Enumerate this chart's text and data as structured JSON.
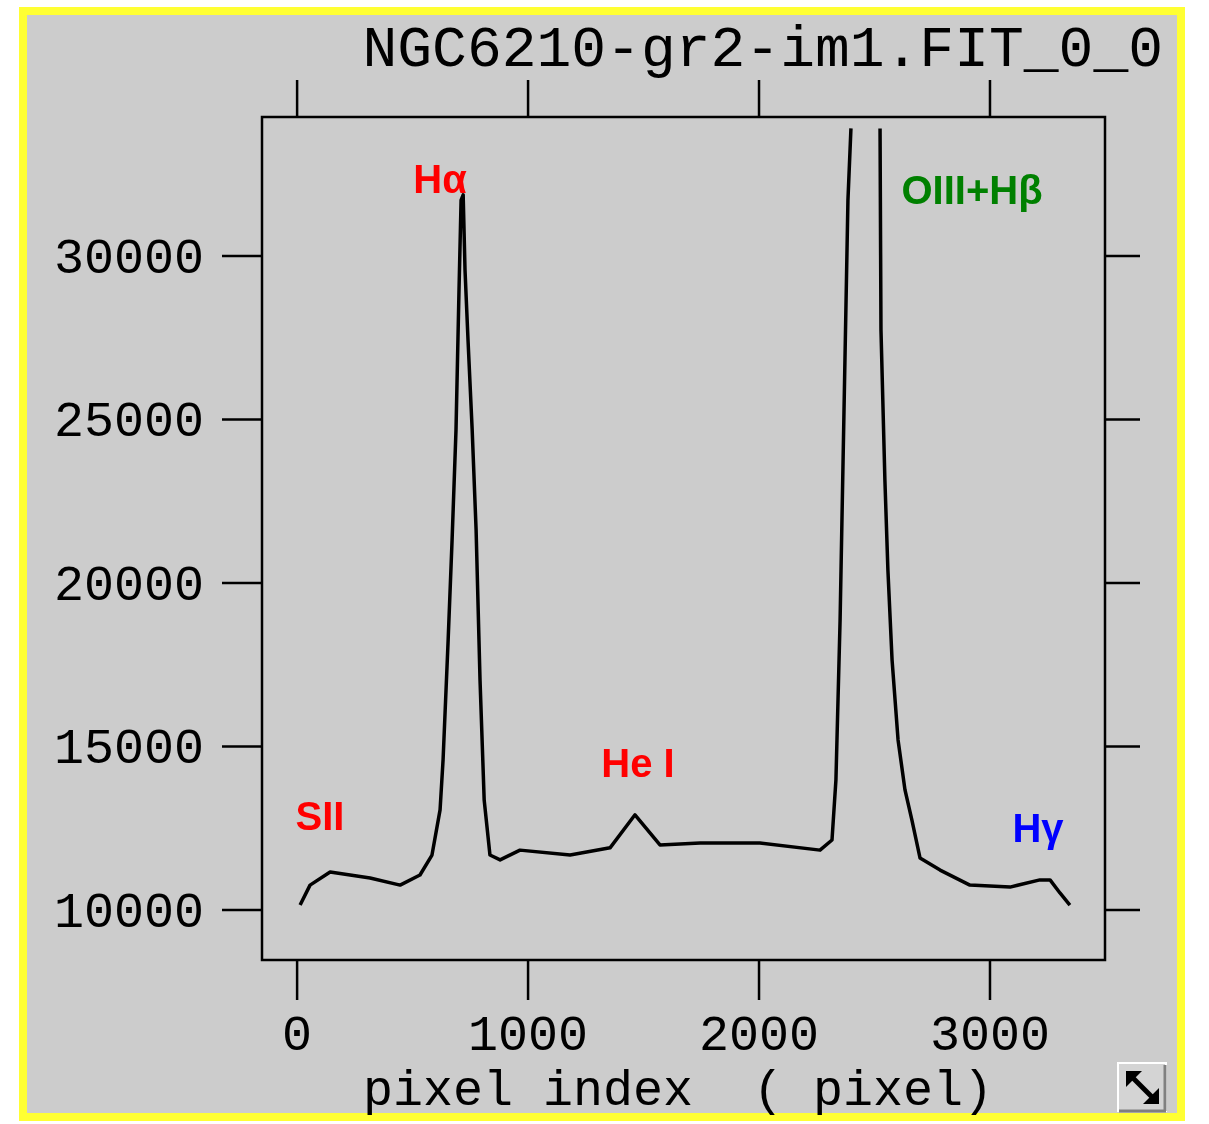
{
  "chart_data": {
    "type": "line",
    "title": "NGC6210-gr2-im1.FIT_0_0",
    "xlabel": "pixel index  ( pixel)",
    "x": [
      13,
      56,
      143,
      316,
      446,
      532,
      584,
      619,
      632,
      654,
      671,
      688,
      701,
      710,
      719,
      727,
      740,
      758,
      775,
      792,
      810,
      835,
      879,
      965,
      1182,
      1355,
      1463,
      1571,
      1745,
      2004,
      2264,
      2316,
      2333,
      2351,
      2368,
      2385,
      2398,
      2460,
      2524,
      2528,
      2545,
      2558,
      2576,
      2602,
      2632,
      2662,
      2697,
      2784,
      2913,
      3087,
      3216,
      3260,
      3303,
      3346
    ],
    "series": [
      {
        "color": "#000000",
        "values": [
          10150,
          10760,
          11160,
          10980,
          10760,
          11070,
          11680,
          13060,
          14590,
          18260,
          21310,
          24680,
          28960,
          31710,
          31870,
          29570,
          27430,
          24680,
          21620,
          17030,
          13360,
          11680,
          11530,
          11830,
          11680,
          11900,
          12910,
          11990,
          12050,
          12050,
          11830,
          12140,
          13980,
          18870,
          25290,
          31710,
          33900,
          null,
          33900,
          27740,
          23150,
          20400,
          17650,
          15200,
          13670,
          12750,
          11590,
          11220,
          10760,
          10700,
          10920,
          10920,
          10520,
          10150
        ]
      }
    ],
    "xlim": [
      -152,
      3498
    ],
    "ylim": [
      8470,
      34250
    ],
    "xticks": [
      0,
      1000,
      2000,
      3000
    ],
    "yticks": [
      10000,
      15000,
      20000,
      25000,
      30000
    ],
    "annotations": [
      "SII",
      "Hα",
      "He I",
      "OIII+Hβ",
      "Hγ"
    ],
    "grid": false,
    "marker": "none",
    "line_style": "solid"
  }
}
